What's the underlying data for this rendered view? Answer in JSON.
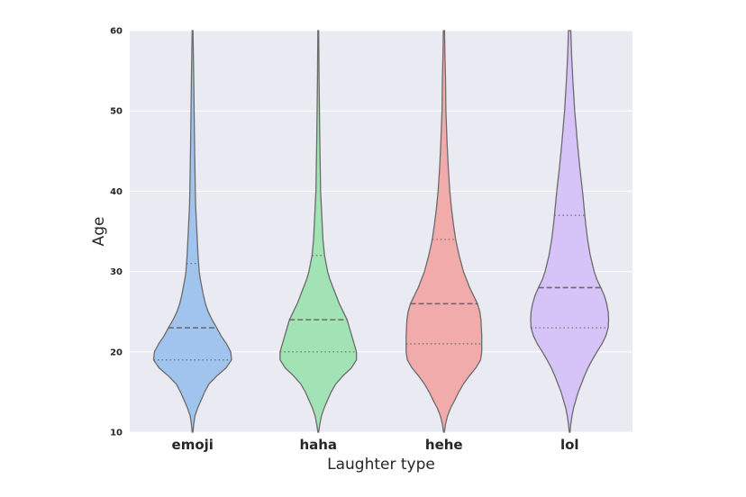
{
  "chart_data": {
    "type": "violin",
    "xlabel": "Laughter type",
    "ylabel": "Age",
    "ylim": [
      10,
      60
    ],
    "yticks": [
      10,
      20,
      30,
      40,
      50,
      60
    ],
    "grid": true,
    "categories": [
      "emoji",
      "haha",
      "hehe",
      "lol"
    ],
    "colors": [
      "#a1c4ef",
      "#a1e3b4",
      "#f1abaa",
      "#d6c3f7"
    ],
    "inner": "quartile",
    "series": [
      {
        "quartiles": [
          19,
          23,
          31
        ],
        "min": 10,
        "max": 60,
        "profile": [
          [
            10,
            0.01
          ],
          [
            11,
            0.03
          ],
          [
            12,
            0.06
          ],
          [
            13,
            0.13
          ],
          [
            14,
            0.22
          ],
          [
            15,
            0.31
          ],
          [
            16,
            0.42
          ],
          [
            17,
            0.62
          ],
          [
            18,
            0.86
          ],
          [
            19,
            1.0
          ],
          [
            20,
            0.98
          ],
          [
            21,
            0.87
          ],
          [
            22,
            0.73
          ],
          [
            23,
            0.62
          ],
          [
            24,
            0.5
          ],
          [
            25,
            0.4
          ],
          [
            26,
            0.33
          ],
          [
            27,
            0.28
          ],
          [
            28,
            0.24
          ],
          [
            29,
            0.2
          ],
          [
            30,
            0.17
          ],
          [
            32,
            0.14
          ],
          [
            34,
            0.12
          ],
          [
            36,
            0.1
          ],
          [
            38,
            0.08
          ],
          [
            40,
            0.07
          ],
          [
            43,
            0.06
          ],
          [
            46,
            0.05
          ],
          [
            50,
            0.04
          ],
          [
            54,
            0.03
          ],
          [
            57,
            0.02
          ],
          [
            60,
            0.01
          ]
        ]
      },
      {
        "quartiles": [
          20,
          24,
          32
        ],
        "min": 10,
        "max": 60,
        "profile": [
          [
            10,
            0.01
          ],
          [
            11,
            0.04
          ],
          [
            12,
            0.08
          ],
          [
            13,
            0.15
          ],
          [
            14,
            0.24
          ],
          [
            15,
            0.33
          ],
          [
            16,
            0.45
          ],
          [
            17,
            0.63
          ],
          [
            18,
            0.85
          ],
          [
            19,
            0.98
          ],
          [
            20,
            0.98
          ],
          [
            21,
            0.92
          ],
          [
            22,
            0.86
          ],
          [
            23,
            0.8
          ],
          [
            24,
            0.74
          ],
          [
            25,
            0.64
          ],
          [
            26,
            0.54
          ],
          [
            27,
            0.46
          ],
          [
            28,
            0.38
          ],
          [
            29,
            0.3
          ],
          [
            30,
            0.24
          ],
          [
            32,
            0.16
          ],
          [
            34,
            0.12
          ],
          [
            36,
            0.1
          ],
          [
            38,
            0.08
          ],
          [
            40,
            0.06
          ],
          [
            43,
            0.05
          ],
          [
            46,
            0.04
          ],
          [
            50,
            0.03
          ],
          [
            54,
            0.02
          ],
          [
            57,
            0.015
          ],
          [
            60,
            0.01
          ]
        ]
      },
      {
        "quartiles": [
          21,
          26,
          34
        ],
        "min": 10,
        "max": 60,
        "profile": [
          [
            10,
            0.01
          ],
          [
            11,
            0.04
          ],
          [
            12,
            0.09
          ],
          [
            13,
            0.17
          ],
          [
            14,
            0.28
          ],
          [
            15,
            0.38
          ],
          [
            16,
            0.5
          ],
          [
            17,
            0.65
          ],
          [
            18,
            0.82
          ],
          [
            19,
            0.94
          ],
          [
            20,
            0.97
          ],
          [
            21,
            0.97
          ],
          [
            22,
            0.97
          ],
          [
            23,
            0.96
          ],
          [
            24,
            0.95
          ],
          [
            25,
            0.92
          ],
          [
            26,
            0.86
          ],
          [
            27,
            0.76
          ],
          [
            28,
            0.66
          ],
          [
            29,
            0.58
          ],
          [
            30,
            0.5
          ],
          [
            32,
            0.39
          ],
          [
            34,
            0.3
          ],
          [
            36,
            0.24
          ],
          [
            38,
            0.19
          ],
          [
            40,
            0.15
          ],
          [
            43,
            0.11
          ],
          [
            46,
            0.08
          ],
          [
            50,
            0.05
          ],
          [
            54,
            0.04
          ],
          [
            57,
            0.025
          ],
          [
            60,
            0.015
          ]
        ]
      },
      {
        "quartiles": [
          23,
          28,
          37
        ],
        "min": 10,
        "max": 60,
        "profile": [
          [
            10,
            0.01
          ],
          [
            11,
            0.03
          ],
          [
            12,
            0.06
          ],
          [
            13,
            0.1
          ],
          [
            14,
            0.16
          ],
          [
            15,
            0.22
          ],
          [
            16,
            0.3
          ],
          [
            17,
            0.38
          ],
          [
            18,
            0.47
          ],
          [
            19,
            0.58
          ],
          [
            20,
            0.7
          ],
          [
            21,
            0.83
          ],
          [
            22,
            0.93
          ],
          [
            23,
            0.99
          ],
          [
            24,
            1.0
          ],
          [
            25,
            0.99
          ],
          [
            26,
            0.95
          ],
          [
            27,
            0.89
          ],
          [
            28,
            0.8
          ],
          [
            29,
            0.7
          ],
          [
            30,
            0.63
          ],
          [
            32,
            0.53
          ],
          [
            34,
            0.46
          ],
          [
            36,
            0.41
          ],
          [
            38,
            0.37
          ],
          [
            40,
            0.33
          ],
          [
            43,
            0.26
          ],
          [
            46,
            0.2
          ],
          [
            50,
            0.13
          ],
          [
            54,
            0.08
          ],
          [
            57,
            0.05
          ],
          [
            60,
            0.03
          ]
        ]
      }
    ]
  }
}
